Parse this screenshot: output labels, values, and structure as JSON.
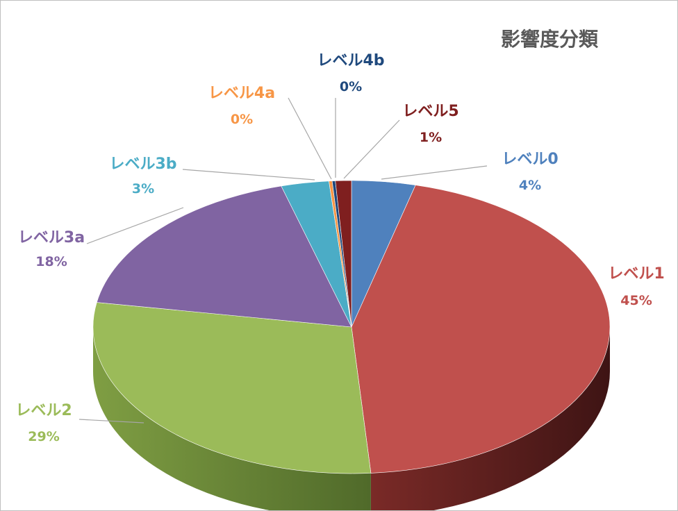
{
  "chart_data": {
    "type": "pie",
    "title": "影響度分類",
    "style": "3d",
    "slices": [
      {
        "label": "レベル0",
        "value": 4,
        "display": "4%",
        "color": "#4F81BD"
      },
      {
        "label": "レベル1",
        "value": 45,
        "display": "45%",
        "color": "#C0504D"
      },
      {
        "label": "レベル2",
        "value": 29,
        "display": "29%",
        "color": "#9BBB59"
      },
      {
        "label": "レベル3a",
        "value": 18,
        "display": "18%",
        "color": "#8064A2"
      },
      {
        "label": "レベル3b",
        "value": 3,
        "display": "3%",
        "color": "#4BACC6"
      },
      {
        "label": "レベル4a",
        "value": 0.2,
        "display": "0%",
        "color": "#F79646"
      },
      {
        "label": "レベル4b",
        "value": 0.2,
        "display": "0%",
        "color": "#1F497D"
      },
      {
        "label": "レベル5",
        "value": 1,
        "display": "1%",
        "color": "#7F1F1F"
      }
    ]
  }
}
